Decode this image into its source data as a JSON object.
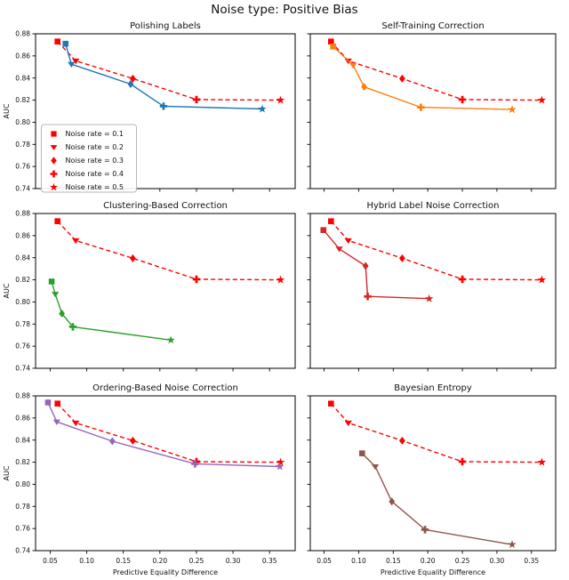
{
  "figure": {
    "title": "Noise type: Positive Bias"
  },
  "chart_data": {
    "type": "line",
    "grid": false,
    "xlabel": "Predictive Equality Difference",
    "ylabel": "AUC",
    "xlim": [
      0.03,
      0.385
    ],
    "ylim": [
      0.74,
      0.88
    ],
    "xticks": [
      0.05,
      0.1,
      0.15,
      0.2,
      0.25,
      0.3,
      0.35
    ],
    "yticks": [
      0.74,
      0.76,
      0.78,
      0.8,
      0.82,
      0.84,
      0.86,
      0.88
    ],
    "marker_by_noise_rate": [
      "square",
      "triangle-down",
      "diamond",
      "plus",
      "star"
    ],
    "legend": {
      "location": "lower left of first subplot",
      "marker_color": "#ff0000",
      "entries": [
        {
          "label": "Noise rate = 0.1",
          "marker": "square"
        },
        {
          "label": "Noise rate = 0.2",
          "marker": "triangle-down"
        },
        {
          "label": "Noise rate = 0.3",
          "marker": "diamond"
        },
        {
          "label": "Noise rate = 0.4",
          "marker": "plus"
        },
        {
          "label": "Noise rate = 0.5",
          "marker": "star"
        }
      ]
    },
    "dashed_reference": {
      "style": "dashed",
      "color": "#ff0000",
      "x": [
        0.06,
        0.085,
        0.163,
        0.25,
        0.365
      ],
      "y": [
        0.873,
        0.8555,
        0.8395,
        0.8205,
        0.82
      ]
    },
    "subplots": [
      {
        "title": "Polishing Labels",
        "color": "#1f77b4",
        "solid": {
          "x": [
            0.071,
            0.079,
            0.16,
            0.205,
            0.34
          ],
          "y": [
            0.871,
            0.8525,
            0.8345,
            0.8145,
            0.812
          ]
        }
      },
      {
        "title": "Self-Training Correction",
        "color": "#ff7f0e",
        "solid": {
          "x": [
            0.063,
            0.092,
            0.108,
            0.19,
            0.322
          ],
          "y": [
            0.8685,
            0.8515,
            0.832,
            0.8135,
            0.8115
          ]
        }
      },
      {
        "title": "Clustering-Based Correction",
        "color": "#2ca02c",
        "solid": {
          "x": [
            0.052,
            0.057,
            0.066,
            0.081,
            0.215
          ],
          "y": [
            0.8185,
            0.807,
            0.7895,
            0.7775,
            0.7655
          ]
        }
      },
      {
        "title": "Hybrid Label Noise Correction",
        "color": "#d62728",
        "solid": {
          "x": [
            0.049,
            0.072,
            0.11,
            0.113,
            0.202
          ],
          "y": [
            0.865,
            0.848,
            0.8325,
            0.805,
            0.803
          ]
        }
      },
      {
        "title": "Ordering-Based Noise Correction",
        "color": "#9467bd",
        "solid": {
          "x": [
            0.047,
            0.059,
            0.135,
            0.248,
            0.364
          ],
          "y": [
            0.874,
            0.8565,
            0.839,
            0.8185,
            0.816
          ]
        }
      },
      {
        "title": "Bayesian Entropy",
        "color": "#8c564b",
        "solid": {
          "x": [
            0.105,
            0.124,
            0.148,
            0.196,
            0.322
          ],
          "y": [
            0.828,
            0.816,
            0.7845,
            0.759,
            0.7455
          ]
        }
      }
    ]
  }
}
